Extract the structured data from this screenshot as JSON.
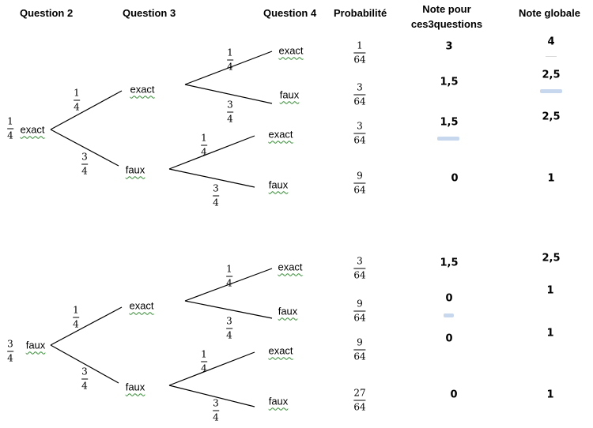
{
  "headers": {
    "q2": "Question 2",
    "q3": "Question 3",
    "q4": "Question 4",
    "proba": "Probabilité",
    "note_line1": "Note pour",
    "note_line2": "ces3questions",
    "note_globale": "Note globale"
  },
  "branch_words": {
    "exact": "exact",
    "faux": "faux"
  },
  "tree_top": {
    "root": {
      "prob": [
        "1",
        "4"
      ],
      "label": "exact"
    },
    "level2": [
      {
        "label": "exact",
        "prob": [
          "1",
          "4"
        ]
      },
      {
        "label": "faux",
        "prob": [
          "3",
          "4"
        ]
      }
    ],
    "level3": [
      {
        "label": "exact",
        "prob": [
          "1",
          "4"
        ]
      },
      {
        "label": "faux",
        "prob": [
          "3",
          "4"
        ]
      },
      {
        "label": "exact",
        "prob": [
          "1",
          "4"
        ]
      },
      {
        "label": "faux",
        "prob": [
          "3",
          "4"
        ]
      }
    ]
  },
  "tree_bottom": {
    "root": {
      "prob": [
        "3",
        "4"
      ],
      "label": "faux"
    },
    "level2": [
      {
        "label": "exact",
        "prob": [
          "1",
          "4"
        ]
      },
      {
        "label": "faux",
        "prob": [
          "3",
          "4"
        ]
      }
    ],
    "level3": [
      {
        "label": "exact",
        "prob": [
          "1",
          "4"
        ]
      },
      {
        "label": "faux",
        "prob": [
          "3",
          "4"
        ]
      },
      {
        "label": "exact",
        "prob": [
          "1",
          "4"
        ]
      },
      {
        "label": "faux",
        "prob": [
          "3",
          "4"
        ]
      }
    ]
  },
  "rows": [
    {
      "proba": [
        "1",
        "64"
      ],
      "note": "3",
      "globale": "4"
    },
    {
      "proba": [
        "3",
        "64"
      ],
      "note": "1,5",
      "globale": "2,5"
    },
    {
      "proba": [
        "3",
        "64"
      ],
      "note": "1,5",
      "globale": "2,5"
    },
    {
      "proba": [
        "9",
        "64"
      ],
      "note": "0",
      "globale": "1"
    },
    {
      "proba": [
        "3",
        "64"
      ],
      "note": "1,5",
      "globale": "2,5"
    },
    {
      "proba": [
        "9",
        "64"
      ],
      "note": "0",
      "globale": "1"
    },
    {
      "proba": [
        "9",
        "64"
      ],
      "note": "0",
      "globale": "1"
    },
    {
      "proba": [
        "27",
        "64"
      ],
      "note": "0",
      "globale": "1"
    }
  ]
}
